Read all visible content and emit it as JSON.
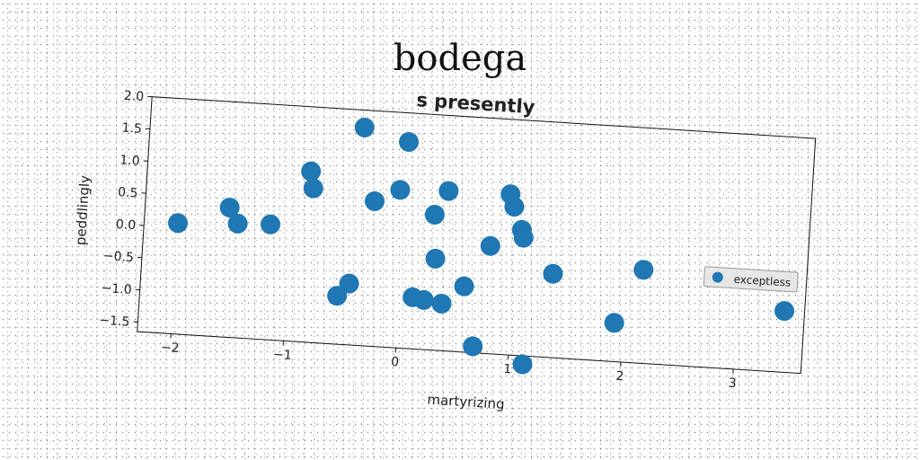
{
  "suptitle": "bodega",
  "chart_data": {
    "type": "scatter",
    "title": "s presently",
    "xlabel": "martyrizing",
    "ylabel": "peddlingly",
    "xlim": [
      -2.3,
      3.6
    ],
    "ylim": [
      -1.65,
      2.0
    ],
    "xticks": [
      -2,
      -1,
      0,
      1,
      2,
      3
    ],
    "xtick_labels": [
      "−2",
      "−1",
      "0",
      "1",
      "2",
      "3"
    ],
    "yticks": [
      -1.5,
      -1.0,
      -0.5,
      0.0,
      0.5,
      1.0,
      1.5,
      2.0
    ],
    "ytick_labels": [
      "−1.5",
      "−1.0",
      "−0.5",
      "0.0",
      "0.5",
      "1.0",
      "1.5",
      "2.0"
    ],
    "legend_position": "right",
    "series": [
      {
        "name": "exceptless",
        "color": "#1f77b4",
        "points": [
          [
            -2.0,
            0.07
          ],
          [
            -1.55,
            0.36
          ],
          [
            -1.47,
            0.12
          ],
          [
            -1.18,
            0.14
          ],
          [
            -0.85,
            1.0
          ],
          [
            -0.82,
            0.74
          ],
          [
            -0.4,
            1.73
          ],
          [
            -0.27,
            0.6
          ],
          [
            -0.05,
            0.8
          ],
          [
            0.0,
            1.55
          ],
          [
            0.27,
            0.45
          ],
          [
            0.38,
            0.83
          ],
          [
            0.93,
            0.84
          ],
          [
            0.97,
            0.65
          ],
          [
            1.05,
            0.3
          ],
          [
            1.07,
            0.18
          ],
          [
            0.78,
            0.02
          ],
          [
            0.3,
            -0.23
          ],
          [
            1.35,
            -0.35
          ],
          [
            2.15,
            -0.2
          ],
          [
            3.42,
            -0.7
          ],
          [
            1.92,
            -1.05
          ],
          [
            0.57,
            -0.63
          ],
          [
            -0.45,
            -0.7
          ],
          [
            -0.55,
            -0.9
          ],
          [
            0.12,
            -0.85
          ],
          [
            0.22,
            -0.88
          ],
          [
            0.38,
            -0.92
          ],
          [
            0.68,
            -1.55
          ],
          [
            1.13,
            -1.78
          ]
        ]
      }
    ]
  }
}
